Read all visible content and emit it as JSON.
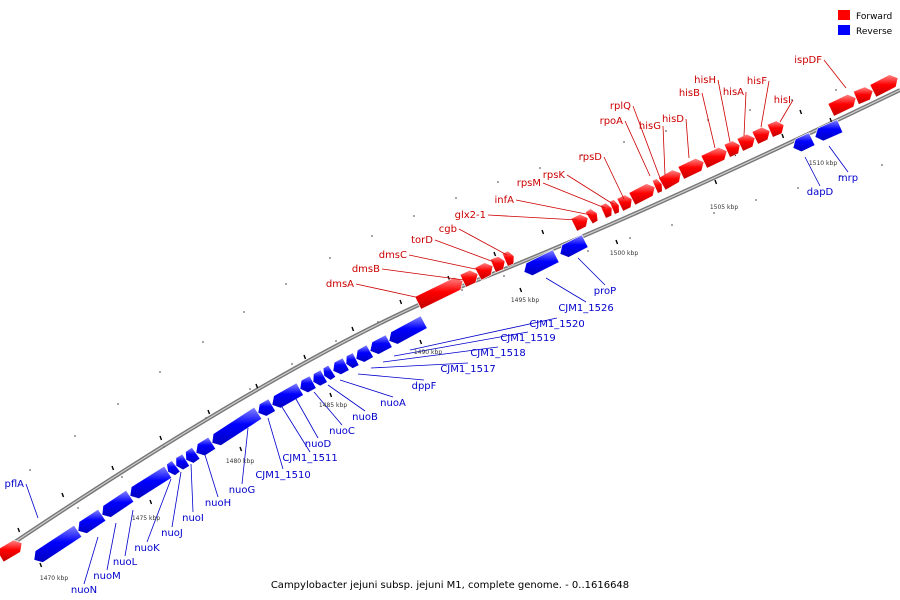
{
  "caption": "Campylobacter jejuni subsp. jejuni M1, complete genome. - 0..1616648",
  "legend": {
    "forward": {
      "label": "Forward",
      "color": "#ff0000"
    },
    "reverse": {
      "label": "Reverse",
      "color": "#0000ff"
    }
  },
  "colors": {
    "forward": "#ff0000",
    "reverse": "#0000ff",
    "backbone": "#888888",
    "tick": "#000000"
  },
  "ruler": [
    {
      "label": "1470 kbp",
      "kbp": 1470
    },
    {
      "label": "1475 kbp",
      "kbp": 1475
    },
    {
      "label": "1480 kbp",
      "kbp": 1480
    },
    {
      "label": "1485 kbp",
      "kbp": 1485
    },
    {
      "label": "1490 kbp",
      "kbp": 1490
    },
    {
      "label": "1495 kbp",
      "kbp": 1495
    },
    {
      "label": "1500 kbp",
      "kbp": 1500
    },
    {
      "label": "1505 kbp",
      "kbp": 1505
    },
    {
      "label": "1510 kbp",
      "kbp": 1510
    }
  ],
  "genes": {
    "forward": [
      "dmsA",
      "dmsB",
      "dmsC",
      "torD",
      "cgb",
      "glx2-1",
      "infA",
      "rpsM",
      "rpsK",
      "rpsD",
      "rpoA",
      "rplQ",
      "hisG",
      "hisD",
      "hisB",
      "hisH",
      "hisA",
      "hisF",
      "hisI",
      "ispDF"
    ],
    "reverse": [
      "pflA",
      "nuoN",
      "nuoM",
      "nuoL",
      "nuoK",
      "nuoJ",
      "nuoI",
      "nuoH",
      "nuoG",
      "CJM1_1510",
      "CJM1_1511",
      "nuoD",
      "nuoC",
      "nuoB",
      "nuoA",
      "dppF",
      "CJM1_1517",
      "CJM1_1518",
      "CJM1_1519",
      "CJM1_1520",
      "CJM1_1526",
      "proP",
      "dapD",
      "mrp"
    ]
  }
}
